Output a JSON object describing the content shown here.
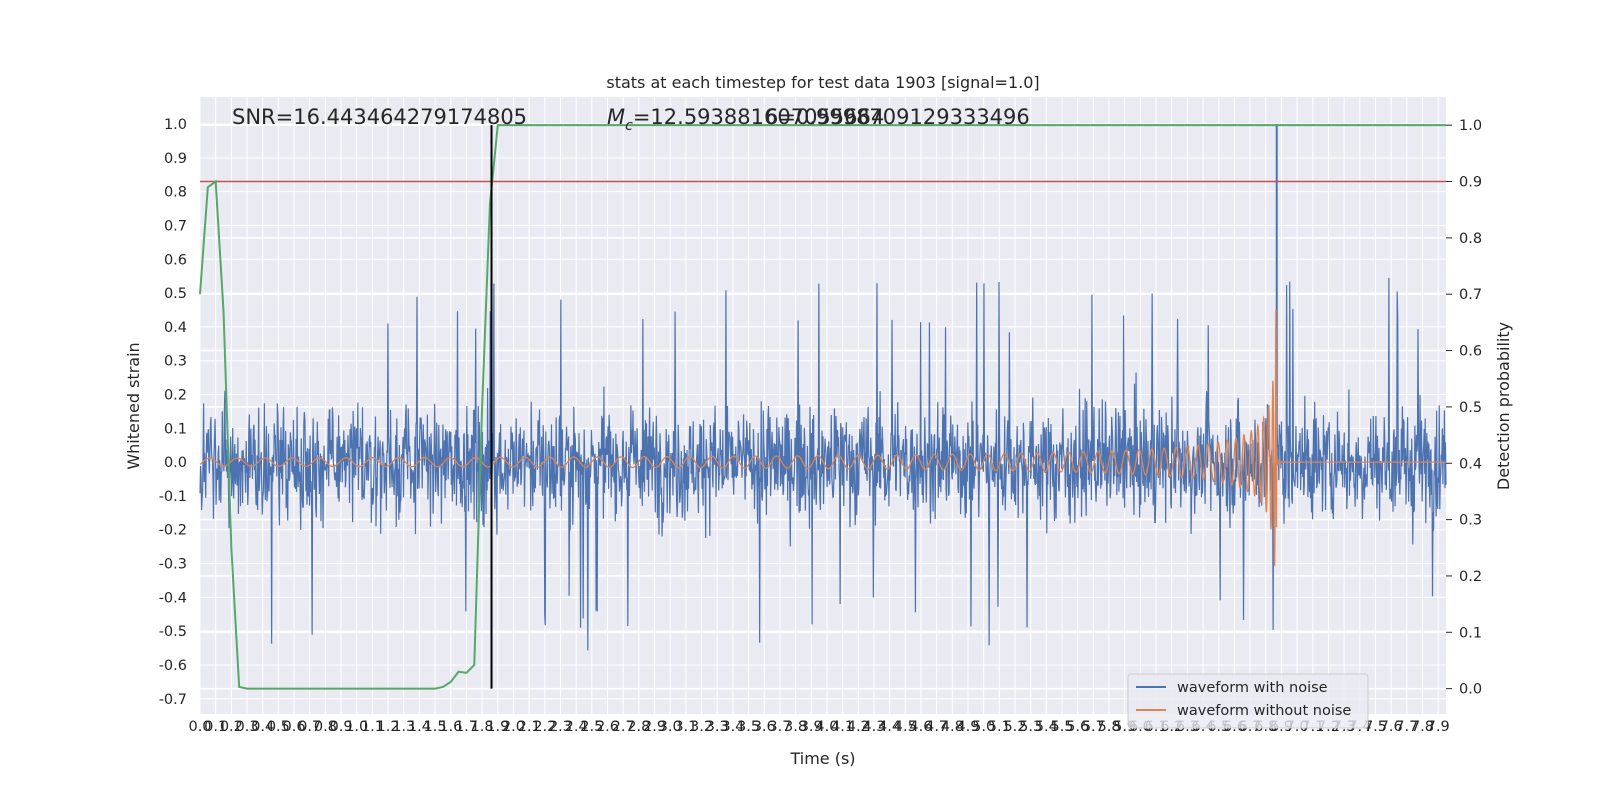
{
  "chart_data": {
    "type": "line",
    "title": "stats at each timestep for test data 1903 [signal=1.0]",
    "xlabel": "Time (s)",
    "ylabel": "Whitened strain",
    "ylabel_right": "Detection probability",
    "xlim": [
      0.0,
      7.95
    ],
    "ylim": [
      -0.745,
      1.08
    ],
    "ylim_right": [
      -0.045,
      1.05
    ],
    "x_ticks": [
      "0.0",
      "0.1",
      "0.2",
      "0.3",
      "0.4",
      "0.5",
      "0.6",
      "0.7",
      "0.8",
      "0.9",
      "1.0",
      "1.1",
      "1.2",
      "1.3",
      "1.4",
      "1.5",
      "1.6",
      "1.7",
      "1.8",
      "1.9",
      "2.0",
      "2.1",
      "2.2",
      "2.3",
      "2.4",
      "2.5",
      "2.6",
      "2.7",
      "2.8",
      "2.9",
      "3.0",
      "3.1",
      "3.2",
      "3.3",
      "3.4",
      "3.5",
      "3.6",
      "3.7",
      "3.8",
      "3.9",
      "4.0",
      "4.1",
      "4.2",
      "4.3",
      "4.4",
      "4.5",
      "4.6",
      "4.7",
      "4.8",
      "4.9",
      "5.0",
      "5.1",
      "5.2",
      "5.3",
      "5.4",
      "5.5",
      "5.6",
      "5.7",
      "5.8",
      "5.9",
      "6.0",
      "6.1",
      "6.2",
      "6.3",
      "6.4",
      "6.5",
      "6.6",
      "6.7",
      "6.8",
      "6.9",
      "7.0",
      "7.1",
      "7.2",
      "7.3",
      "7.4",
      "7.5",
      "7.6",
      "7.7",
      "7.8",
      "7.9"
    ],
    "y_ticks_left": [
      "-0.7",
      "-0.6",
      "-0.5",
      "-0.4",
      "-0.3",
      "-0.2",
      "-0.1",
      "0.0",
      "0.1",
      "0.2",
      "0.3",
      "0.4",
      "0.5",
      "0.6",
      "0.7",
      "0.8",
      "0.9",
      "1.0"
    ],
    "y_ticks_right": [
      "0.0",
      "0.1",
      "0.2",
      "0.3",
      "0.4",
      "0.5",
      "0.6",
      "0.7",
      "0.8",
      "0.9",
      "1.0"
    ],
    "grid": true,
    "legend_position": "lower-right",
    "annotations": {
      "snr": "SNR=16.443464279174805",
      "mc_prefix": "M",
      "mc_subscript": "c",
      "mc_value": "=12.593881607055664",
      "second_value": "6=0.9998709129333496"
    },
    "series": [
      {
        "name": "waveform with noise",
        "color": "#4c72b0",
        "description_noise_envelope": [
          -0.5,
          0.5
        ],
        "spike": {
          "x": 6.87,
          "y": 1.0
        }
      },
      {
        "name": "waveform without noise",
        "color": "#dd8452",
        "chirp_end_x": 6.87,
        "chirp_peak": 0.5
      },
      {
        "name": "detection probability",
        "axis": "right",
        "color": "#55a868",
        "x": [
          0.0,
          0.05,
          0.1,
          0.15,
          0.2,
          0.25,
          0.3,
          0.4,
          0.6,
          0.8,
          1.0,
          1.2,
          1.4,
          1.5,
          1.55,
          1.6,
          1.65,
          1.7,
          1.75,
          1.8,
          1.85,
          1.9,
          1.95,
          2.0,
          7.95
        ],
        "values": [
          0.7,
          0.89,
          0.9,
          0.67,
          0.25,
          0.003,
          0.0,
          0.0,
          0.0,
          0.0,
          0.0,
          0.0,
          0.0,
          0.0,
          0.003,
          0.012,
          0.03,
          0.028,
          0.042,
          0.5,
          0.86,
          1.0,
          1.0,
          1.0,
          1.0
        ]
      },
      {
        "name": "threshold",
        "axis": "right",
        "color": "#c44e52",
        "value": 0.9
      },
      {
        "name": "marker",
        "color": "#000000",
        "x": 1.86
      }
    ],
    "colors": {
      "background": "#eaeaf2",
      "grid": "#ffffff",
      "noise": "#4c72b0",
      "clean": "#dd8452",
      "probability": "#55a868",
      "threshold": "#c44e52",
      "marker": "#000000"
    },
    "legend": [
      "waveform with noise",
      "waveform without noise"
    ]
  }
}
